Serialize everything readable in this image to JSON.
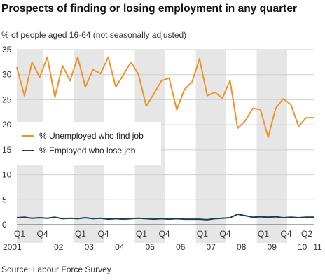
{
  "header": {
    "title": "Prospects of finding or losing employment in any quarter",
    "subtitle": "% of people aged 16-64 (not seasonally adjusted)"
  },
  "footer": {
    "source": "Source: Labour Force Survey"
  },
  "legend": {
    "placement": "middle-left",
    "items": [
      {
        "label": "% Unemployed who find job",
        "color": "#f0922a"
      },
      {
        "label": "% Employed who lose job",
        "color": "#1c3d5a"
      }
    ]
  },
  "colors": {
    "band": "#e6e6e6",
    "grid": "#cfcfcf",
    "axis": "#555555"
  },
  "chart_data": {
    "type": "line",
    "ylim": [
      0,
      35
    ],
    "yticks": [
      0,
      5,
      10,
      15,
      20,
      25,
      30,
      35
    ],
    "grid": true,
    "x_start": "2001 Q1",
    "quarter_labels": [
      {
        "i": 0,
        "label": "Q1"
      },
      {
        "i": 3,
        "label": "Q4"
      },
      {
        "i": 8,
        "label": "Q1"
      },
      {
        "i": 11,
        "label": "Q4"
      },
      {
        "i": 16,
        "label": "Q1"
      },
      {
        "i": 19,
        "label": "Q4"
      },
      {
        "i": 24,
        "label": "Q1"
      },
      {
        "i": 27,
        "label": "Q4"
      },
      {
        "i": 32,
        "label": "Q1"
      },
      {
        "i": 35,
        "label": "Q4"
      },
      {
        "i": 39,
        "label": "Q2"
      }
    ],
    "year_labels": [
      "2001",
      "02",
      "03",
      "04",
      "05",
      "06",
      "07",
      "08",
      "09",
      "10",
      "11"
    ],
    "shaded_years": [
      0,
      2,
      4,
      6,
      8,
      10
    ],
    "series": [
      {
        "name": "% Unemployed who find job",
        "color": "#f0922a",
        "values": [
          31.5,
          25.8,
          32.5,
          29.5,
          33.5,
          25.5,
          31.8,
          28.8,
          33.5,
          27.5,
          31.0,
          30.2,
          33.5,
          27.5,
          30.0,
          32.5,
          30.0,
          23.7,
          26.2,
          28.8,
          29.3,
          23.0,
          27.0,
          28.5,
          33.2,
          25.8,
          26.5,
          25.3,
          28.8,
          19.3,
          20.8,
          23.3,
          23.0,
          17.5,
          23.3,
          25.2,
          24.0,
          19.7,
          21.4,
          21.4
        ]
      },
      {
        "name": "% Employed who lose job",
        "color": "#1c3d5a",
        "values": [
          1.4,
          1.5,
          1.3,
          1.4,
          1.3,
          1.5,
          1.2,
          1.3,
          1.2,
          1.4,
          1.2,
          1.3,
          1.1,
          1.2,
          1.1,
          1.2,
          1.3,
          1.2,
          1.1,
          1.2,
          1.1,
          1.2,
          1.1,
          1.1,
          1.1,
          1.0,
          1.2,
          1.3,
          1.4,
          2.1,
          1.8,
          1.5,
          1.6,
          1.5,
          1.6,
          1.4,
          1.5,
          1.4,
          1.5,
          1.5
        ]
      }
    ]
  }
}
